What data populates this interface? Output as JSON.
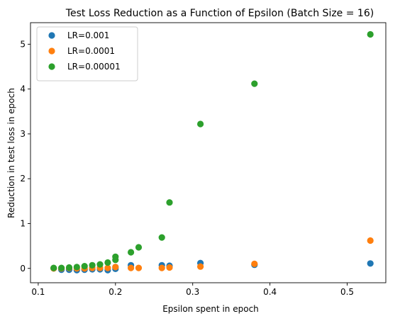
{
  "chart_data": {
    "type": "scatter",
    "title": "Test Loss Reduction as a Function of Epsilon (Batch Size = 16)",
    "xlabel": "Epsilon spent in epoch",
    "ylabel": "Reduction in test loss in epoch",
    "xlim": [
      0.09,
      0.55
    ],
    "ylim": [
      -0.32,
      5.48
    ],
    "xticks": [
      "0.1",
      "0.2",
      "0.3",
      "0.4",
      "0.5"
    ],
    "yticks": [
      "0",
      "1",
      "2",
      "3",
      "4",
      "5"
    ],
    "xtick_values": [
      0.1,
      0.2,
      0.3,
      0.4,
      0.5
    ],
    "ytick_values": [
      0,
      1,
      2,
      3,
      4,
      5
    ],
    "legend_position": "top-left",
    "grid": false,
    "series": [
      {
        "name": "LR=0.001",
        "color": "#1f77b4",
        "points": [
          [
            0.12,
            0.0
          ],
          [
            0.13,
            -0.03
          ],
          [
            0.14,
            -0.03
          ],
          [
            0.15,
            -0.04
          ],
          [
            0.16,
            -0.03
          ],
          [
            0.17,
            -0.02
          ],
          [
            0.18,
            -0.02
          ],
          [
            0.19,
            -0.04
          ],
          [
            0.2,
            -0.01
          ],
          [
            0.2,
            0.03
          ],
          [
            0.22,
            0.07
          ],
          [
            0.26,
            0.07
          ],
          [
            0.27,
            0.06
          ],
          [
            0.31,
            0.12
          ],
          [
            0.38,
            0.08
          ],
          [
            0.53,
            0.11
          ]
        ]
      },
      {
        "name": "LR=0.0001",
        "color": "#ff7f0e",
        "points": [
          [
            0.12,
            0.0
          ],
          [
            0.13,
            0.0
          ],
          [
            0.14,
            0.01
          ],
          [
            0.15,
            0.0
          ],
          [
            0.16,
            0.0
          ],
          [
            0.17,
            0.01
          ],
          [
            0.18,
            0.01
          ],
          [
            0.19,
            0.01
          ],
          [
            0.2,
            0.03
          ],
          [
            0.22,
            0.01
          ],
          [
            0.23,
            0.01
          ],
          [
            0.26,
            0.01
          ],
          [
            0.27,
            0.02
          ],
          [
            0.31,
            0.04
          ],
          [
            0.38,
            0.1
          ],
          [
            0.53,
            0.62
          ]
        ]
      },
      {
        "name": "LR=0.00001",
        "color": "#2ca02c",
        "points": [
          [
            0.12,
            0.01
          ],
          [
            0.13,
            0.01
          ],
          [
            0.14,
            0.02
          ],
          [
            0.15,
            0.03
          ],
          [
            0.16,
            0.05
          ],
          [
            0.17,
            0.07
          ],
          [
            0.18,
            0.09
          ],
          [
            0.19,
            0.13
          ],
          [
            0.2,
            0.19
          ],
          [
            0.2,
            0.26
          ],
          [
            0.22,
            0.36
          ],
          [
            0.23,
            0.47
          ],
          [
            0.26,
            0.69
          ],
          [
            0.27,
            1.47
          ],
          [
            0.31,
            3.22
          ],
          [
            0.38,
            4.12
          ],
          [
            0.53,
            5.22
          ]
        ]
      }
    ]
  }
}
